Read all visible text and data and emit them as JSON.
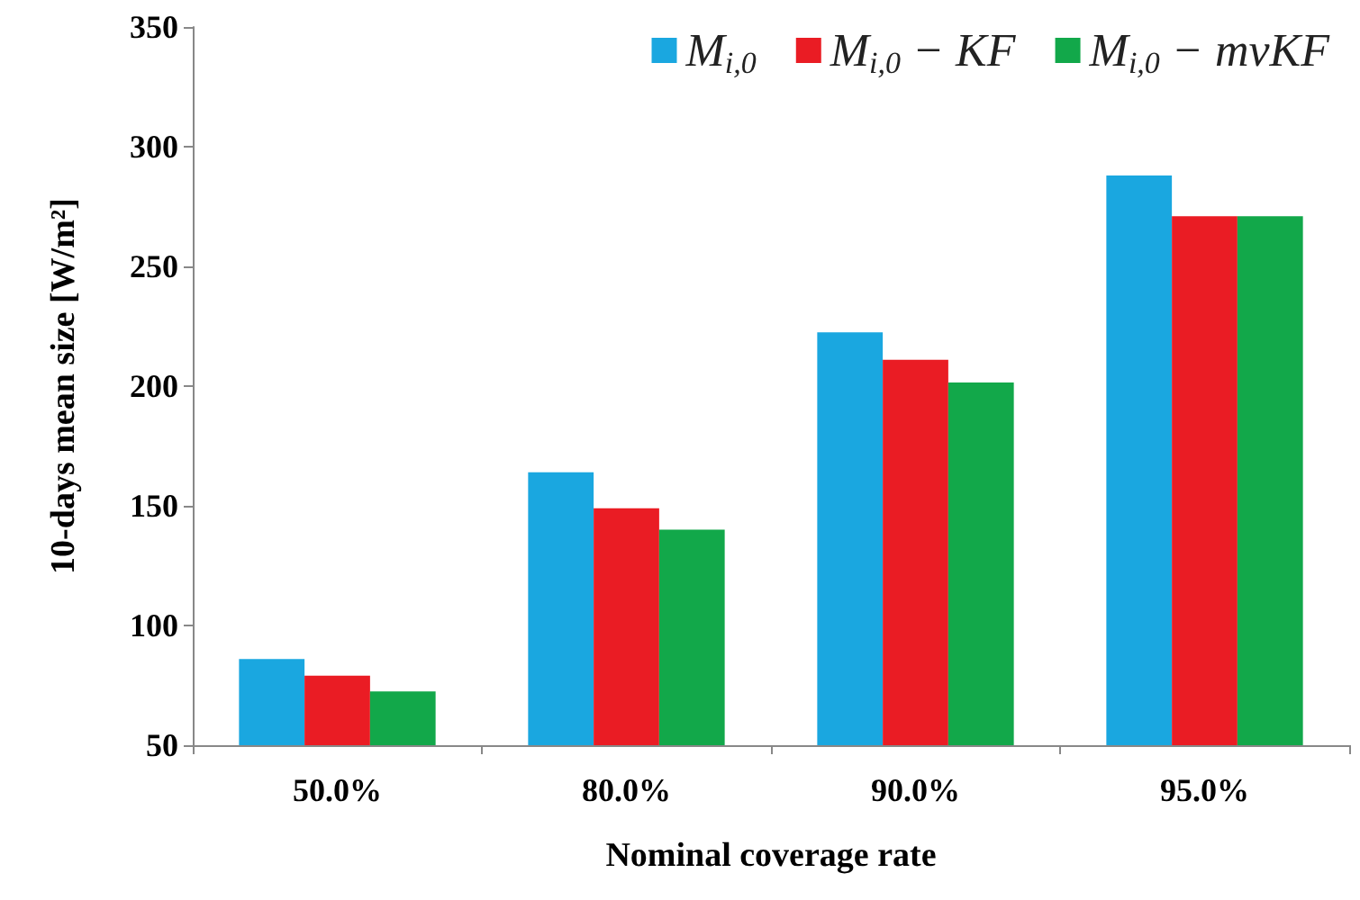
{
  "chart_data": {
    "type": "bar",
    "xlabel": "Nominal coverage rate",
    "ylabel": "10-days mean size [W/m²]",
    "categories": [
      "50.0%",
      "80.0%",
      "90.0%",
      "95.0%"
    ],
    "series": [
      {
        "name": "M$_{i,0}$",
        "color": "#1aa7e0",
        "values": [
          86,
          164,
          222.5,
          288
        ]
      },
      {
        "name": "M$_{i,0}$ − KF",
        "color": "#ea1c24",
        "values": [
          79,
          149,
          211,
          271
        ]
      },
      {
        "name": "M$_{i,0}$ − mvKF",
        "color": "#12a84a",
        "values": [
          72.5,
          140,
          201.5,
          271
        ]
      }
    ],
    "ylim": [
      50,
      350
    ],
    "yticks": [
      50,
      100,
      150,
      200,
      250,
      300,
      350
    ],
    "grid": false,
    "legend": "top right"
  }
}
